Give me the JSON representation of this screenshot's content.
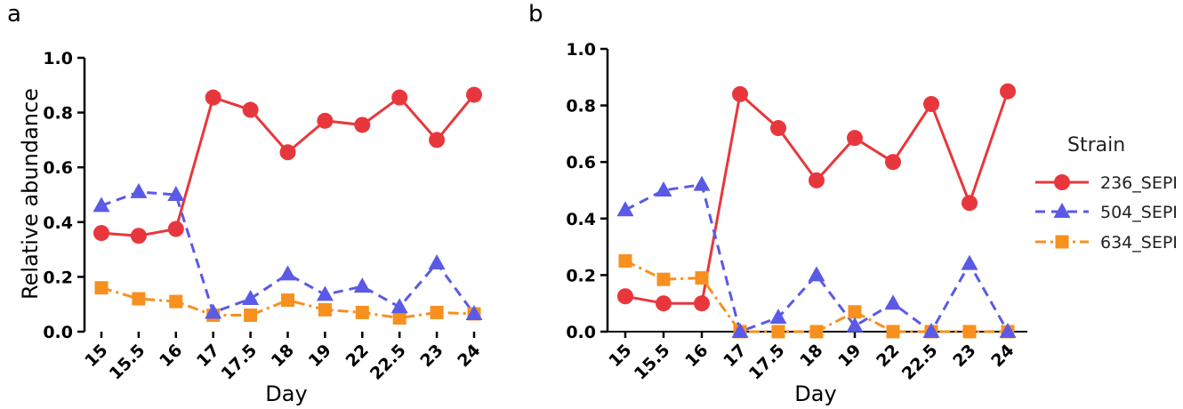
{
  "chart_data": [
    {
      "panel": "a",
      "type": "line",
      "categories": [
        "15",
        "15.5",
        "16",
        "17",
        "17.5",
        "18",
        "19",
        "22",
        "22.5",
        "23",
        "24"
      ],
      "xlabel": "Day",
      "ylabel": "Relative abundance",
      "ylim": [
        0,
        1.0
      ],
      "yticks": [
        "0.0",
        "0.2",
        "0.4",
        "0.6",
        "0.8",
        "1.0"
      ],
      "series": [
        {
          "name": "236_SEPI",
          "color": "#e8373c",
          "marker": "circle",
          "line": "solid",
          "values": [
            0.36,
            0.35,
            0.375,
            0.855,
            0.81,
            0.655,
            0.77,
            0.755,
            0.855,
            0.7,
            0.865
          ]
        },
        {
          "name": "504_SEPI",
          "color": "#5a5ae6",
          "marker": "triangle",
          "line": "dashed",
          "values": [
            0.46,
            0.51,
            0.5,
            0.07,
            0.12,
            0.21,
            0.135,
            0.165,
            0.09,
            0.25,
            0.065
          ]
        },
        {
          "name": "634_SEPI",
          "color": "#f7901e",
          "marker": "square",
          "line": "dashdot",
          "values": [
            0.16,
            0.12,
            0.11,
            0.06,
            0.06,
            0.115,
            0.08,
            0.07,
            0.05,
            0.07,
            0.065
          ]
        }
      ]
    },
    {
      "panel": "b",
      "type": "line",
      "categories": [
        "15",
        "15.5",
        "16",
        "17",
        "17.5",
        "18",
        "19",
        "22",
        "22.5",
        "23",
        "24"
      ],
      "xlabel": "Day",
      "ylabel": "",
      "ylim": [
        0,
        1.0
      ],
      "yticks": [
        "0.0",
        "0.2",
        "0.4",
        "0.6",
        "0.8",
        "1.0"
      ],
      "series": [
        {
          "name": "236_SEPI",
          "color": "#e8373c",
          "marker": "circle",
          "line": "solid",
          "values": [
            0.125,
            0.1,
            0.1,
            0.84,
            0.72,
            0.535,
            0.685,
            0.6,
            0.805,
            0.455,
            0.85
          ]
        },
        {
          "name": "504_SEPI",
          "color": "#5a5ae6",
          "marker": "triangle",
          "line": "dashed",
          "values": [
            0.43,
            0.5,
            0.52,
            0.0,
            0.05,
            0.2,
            0.02,
            0.1,
            0.0,
            0.24,
            0.0
          ]
        },
        {
          "name": "634_SEPI",
          "color": "#f7901e",
          "marker": "square",
          "line": "dashdot",
          "values": [
            0.25,
            0.185,
            0.19,
            0.0,
            0.0,
            0.0,
            0.07,
            0.0,
            0.0,
            0.0,
            0.0
          ]
        }
      ]
    }
  ],
  "legend": {
    "title": "Strain",
    "items": [
      "236_SEPI",
      "504_SEPI",
      "634_SEPI"
    ]
  }
}
